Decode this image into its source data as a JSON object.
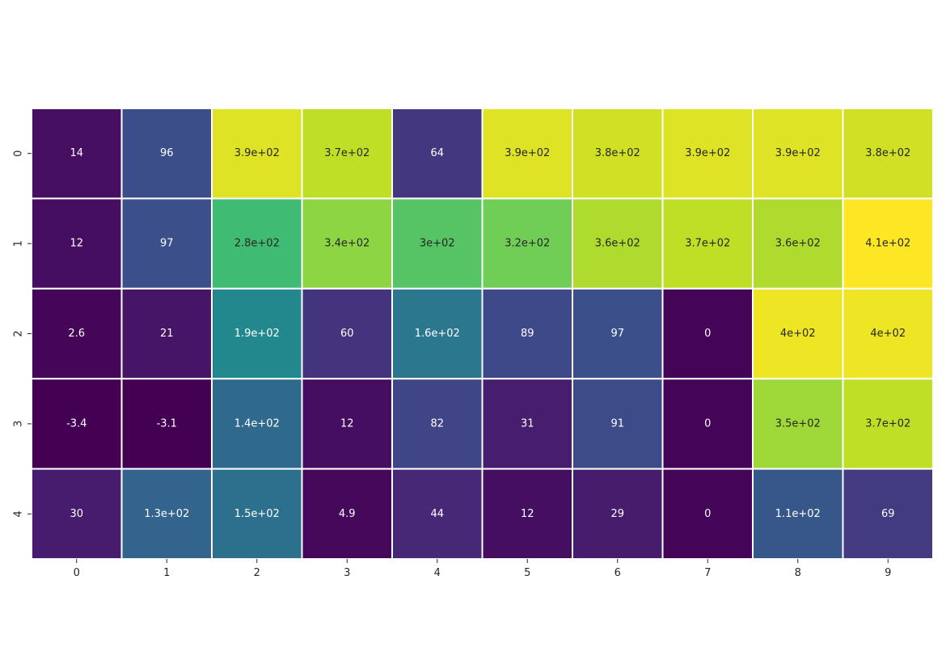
{
  "chart_data": {
    "type": "heatmap",
    "colormap": "viridis",
    "colorbar": false,
    "grid_lines_color": "#ffffff",
    "x_tick_labels": [
      "0",
      "1",
      "2",
      "3",
      "4",
      "5",
      "6",
      "7",
      "8",
      "9"
    ],
    "y_tick_labels": [
      "0",
      "1",
      "2",
      "3",
      "4"
    ],
    "value_range": [
      -3.4,
      410
    ],
    "values": [
      [
        14,
        96,
        390,
        370,
        64,
        390,
        380,
        390,
        390,
        380
      ],
      [
        12,
        97,
        280,
        340,
        300,
        320,
        360,
        370,
        360,
        410
      ],
      [
        2.6,
        21,
        190,
        60,
        160,
        89,
        97,
        0,
        400,
        400
      ],
      [
        -3.4,
        -3.1,
        140,
        12,
        82,
        31,
        91,
        0,
        350,
        370
      ],
      [
        30,
        130,
        150,
        4.9,
        44,
        12,
        29,
        0,
        110,
        69
      ]
    ],
    "labels": [
      [
        "14",
        "96",
        "3.9e+02",
        "3.7e+02",
        "64",
        "3.9e+02",
        "3.8e+02",
        "3.9e+02",
        "3.9e+02",
        "3.8e+02"
      ],
      [
        "12",
        "97",
        "2.8e+02",
        "3.4e+02",
        "3e+02",
        "3.2e+02",
        "3.6e+02",
        "3.7e+02",
        "3.6e+02",
        "4.1e+02"
      ],
      [
        "2.6",
        "21",
        "1.9e+02",
        "60",
        "1.6e+02",
        "89",
        "97",
        "0",
        "4e+02",
        "4e+02"
      ],
      [
        "-3.4",
        "-3.1",
        "1.4e+02",
        "12",
        "82",
        "31",
        "91",
        "0",
        "3.5e+02",
        "3.7e+02"
      ],
      [
        "30",
        "1.3e+02",
        "1.5e+02",
        "4.9",
        "44",
        "12",
        "29",
        "0",
        "1.1e+02",
        "69"
      ]
    ]
  }
}
